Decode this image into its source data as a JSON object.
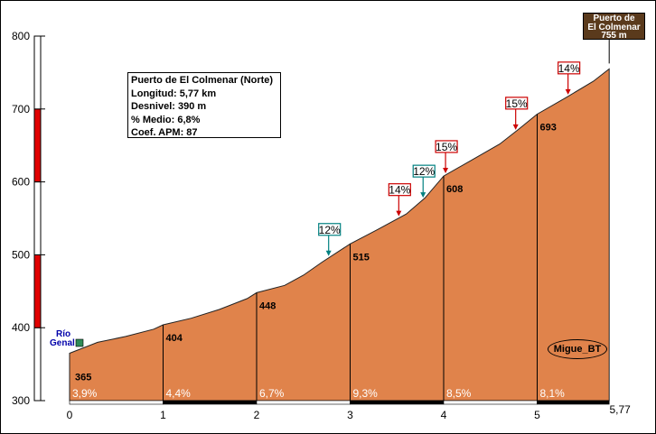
{
  "chart_data": {
    "type": "area",
    "title": "Puerto de El Colmenar (Norte)",
    "stats": {
      "longitud": "Longitud: 5,77 km",
      "desnivel": "Desnivel: 390 m",
      "medio": "% Medio: 6,8%",
      "coef": "Coef. APM: 87"
    },
    "ylim": [
      300,
      800
    ],
    "xlim": [
      0,
      5.77
    ],
    "yticks": [
      "300",
      "400",
      "500",
      "600",
      "700",
      "800"
    ],
    "xticks": [
      "0",
      "1",
      "2",
      "3",
      "4",
      "5"
    ],
    "x_end_label": "5,77",
    "profile": [
      {
        "x": 0,
        "y": 365
      },
      {
        "x": 0.3,
        "y": 380
      },
      {
        "x": 0.6,
        "y": 388
      },
      {
        "x": 0.9,
        "y": 398
      },
      {
        "x": 1.0,
        "y": 404
      },
      {
        "x": 1.3,
        "y": 413
      },
      {
        "x": 1.6,
        "y": 425
      },
      {
        "x": 1.9,
        "y": 440
      },
      {
        "x": 2.0,
        "y": 448
      },
      {
        "x": 2.3,
        "y": 458
      },
      {
        "x": 2.5,
        "y": 472
      },
      {
        "x": 2.7,
        "y": 490
      },
      {
        "x": 3.0,
        "y": 515
      },
      {
        "x": 3.3,
        "y": 535
      },
      {
        "x": 3.6,
        "y": 556
      },
      {
        "x": 3.8,
        "y": 578
      },
      {
        "x": 4.0,
        "y": 608
      },
      {
        "x": 4.3,
        "y": 630
      },
      {
        "x": 4.6,
        "y": 652
      },
      {
        "x": 4.8,
        "y": 672
      },
      {
        "x": 5.0,
        "y": 693
      },
      {
        "x": 5.3,
        "y": 715
      },
      {
        "x": 5.6,
        "y": 738
      },
      {
        "x": 5.77,
        "y": 755
      }
    ],
    "km_marks": [
      {
        "x": 1,
        "label": "404"
      },
      {
        "x": 2,
        "label": "448"
      },
      {
        "x": 3,
        "label": "515"
      },
      {
        "x": 4,
        "label": "608"
      },
      {
        "x": 5,
        "label": "693"
      }
    ],
    "start_elev": {
      "x": 0,
      "label": "365"
    },
    "segment_pcts": [
      {
        "x": 0,
        "label": "3,9%"
      },
      {
        "x": 1,
        "label": "4,4%"
      },
      {
        "x": 2,
        "label": "6,7%"
      },
      {
        "x": 3,
        "label": "9,3%"
      },
      {
        "x": 4,
        "label": "8,5%"
      },
      {
        "x": 5,
        "label": "8,1%"
      }
    ],
    "max_pcts": [
      {
        "x": 2.77,
        "label": "12%",
        "color": "#008080"
      },
      {
        "x": 3.52,
        "label": "14%",
        "color": "#cc0000"
      },
      {
        "x": 3.78,
        "label": "12%",
        "color": "#008080"
      },
      {
        "x": 4.02,
        "label": "15%",
        "color": "#cc0000"
      },
      {
        "x": 4.77,
        "label": "15%",
        "color": "#cc0000"
      },
      {
        "x": 5.33,
        "label": "14%",
        "color": "#cc0000"
      }
    ],
    "summit": {
      "line1": "Puerto de",
      "line2": "El Colmenar",
      "line3": "755 m"
    },
    "start_name": {
      "line1": "Río",
      "line2": "Genal"
    },
    "author": "Migue_BT",
    "colors": {
      "fill": "#e0834b",
      "axis_red": "#e00000",
      "summit_bg": "#5a3a1c"
    }
  }
}
